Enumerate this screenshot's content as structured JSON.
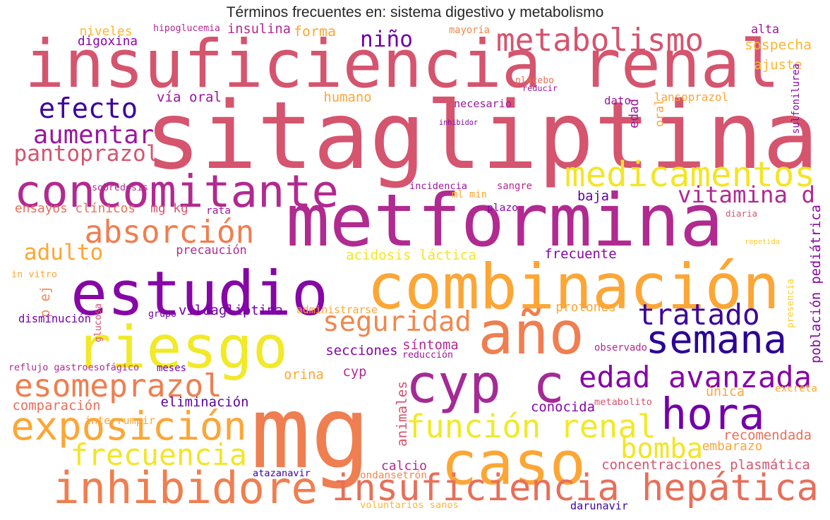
{
  "title": "Términos frecuentes en: sistema digestivo y metabolismo",
  "words": [
    {
      "text": "sitagliptina",
      "color": "#d5546e"
    },
    {
      "text": "insuficiencia renal",
      "color": "#d5546e"
    },
    {
      "text": "metformina",
      "color": "#b12a90"
    },
    {
      "text": "mg",
      "color": "#ef7e50"
    },
    {
      "text": "estudio",
      "color": "#8606a6"
    },
    {
      "text": "combinación",
      "color": "#fca636"
    },
    {
      "text": "riesgo",
      "color": "#f1e929"
    },
    {
      "text": "año",
      "color": "#ef7e50"
    },
    {
      "text": "caso",
      "color": "#fca636"
    },
    {
      "text": "cyp c",
      "color": "#a42a95"
    },
    {
      "text": "concomitante",
      "color": "#b12a90"
    },
    {
      "text": "semana",
      "color": "#2c0594"
    },
    {
      "text": "hora",
      "color": "#7201a8"
    },
    {
      "text": "inhibidore",
      "color": "#ef7e50"
    },
    {
      "text": "insuficiencia hepática",
      "color": "#e76f5a"
    },
    {
      "text": "metabolismo",
      "color": "#d5546e"
    },
    {
      "text": "medicamentos",
      "color": "#f3e525"
    },
    {
      "text": "exposición",
      "color": "#fca636"
    },
    {
      "text": "función renal",
      "color": "#f1e929"
    },
    {
      "text": "edad avanzada",
      "color": "#8606a6"
    },
    {
      "text": "esomeprazol",
      "color": "#ef7e50"
    },
    {
      "text": "frecuencia",
      "color": "#f3e525"
    },
    {
      "text": "absorción",
      "color": "#ef7e50"
    },
    {
      "text": "tratado",
      "color": "#3c049b"
    },
    {
      "text": "seguridad",
      "color": "#f0884c"
    },
    {
      "text": "efecto",
      "color": "#3c049b"
    },
    {
      "text": "aumentar",
      "color": "#9a179b"
    },
    {
      "text": "pantoprazol",
      "color": "#d5546e"
    },
    {
      "text": "vitamina d",
      "color": "#b12a90"
    },
    {
      "text": "bomba",
      "color": "#f3e525"
    },
    {
      "text": "adulto",
      "color": "#fca636"
    },
    {
      "text": "niño",
      "color": "#7201a8"
    },
    {
      "text": "niveles",
      "color": "#fcb632"
    },
    {
      "text": "hipoglucemia",
      "color": "#b12a90"
    },
    {
      "text": "insulina",
      "color": "#b12a90"
    },
    {
      "text": "forma",
      "color": "#fca636"
    },
    {
      "text": "mayoría",
      "color": "#f0884c"
    },
    {
      "text": "alta",
      "color": "#9a179b"
    },
    {
      "text": "digoxina",
      "color": "#8606a6"
    },
    {
      "text": "sospecha",
      "color": "#fcb632"
    },
    {
      "text": "ajuste",
      "color": "#fcb632"
    },
    {
      "text": "placebo",
      "color": "#e76f5a"
    },
    {
      "text": "reducir",
      "color": "#9a179b"
    },
    {
      "text": "vía oral",
      "color": "#9a179b"
    },
    {
      "text": "humano",
      "color": "#fca636"
    },
    {
      "text": "dato",
      "color": "#9a179b"
    },
    {
      "text": "lansoprazol",
      "color": "#fca636"
    },
    {
      "text": "edad",
      "color": "#9a179b"
    },
    {
      "text": "oral",
      "color": "#fca636"
    },
    {
      "text": "sulfonilurea",
      "color": "#8606a6"
    },
    {
      "text": "necesario",
      "color": "#9a179b"
    },
    {
      "text": "inhibidor",
      "color": "#8606a6"
    },
    {
      "text": "sobredosis",
      "color": "#b12a90"
    },
    {
      "text": "sangre",
      "color": "#b12a90"
    },
    {
      "text": "incidencia",
      "color": "#9a179b"
    },
    {
      "text": "ml min",
      "color": "#fca636"
    },
    {
      "text": "plazo",
      "color": "#8606a6"
    },
    {
      "text": "baja",
      "color": "#5c01a6"
    },
    {
      "text": "ensayos clínicos",
      "color": "#e76f5a"
    },
    {
      "text": "mg kg",
      "color": "#d5546e"
    },
    {
      "text": "rata",
      "color": "#9a179b"
    },
    {
      "text": "población pediátrica",
      "color": "#8606a6"
    },
    {
      "text": "diaria",
      "color": "#d5546e"
    },
    {
      "text": "precaución",
      "color": "#b12a90"
    },
    {
      "text": "acidosis láctica",
      "color": "#f3e525"
    },
    {
      "text": "frecuente",
      "color": "#8606a6"
    },
    {
      "text": "repetida",
      "color": "#fcce25"
    },
    {
      "text": "in vitro",
      "color": "#fca636"
    },
    {
      "text": "p ej",
      "color": "#f0884c"
    },
    {
      "text": "protones",
      "color": "#fca636"
    },
    {
      "text": "glucosa",
      "color": "#d5546e"
    },
    {
      "text": "vildagliptina",
      "color": "#7201a8"
    },
    {
      "text": "grupo",
      "color": "#7201a8"
    },
    {
      "text": "administrarse",
      "color": "#fca636"
    },
    {
      "text": "presencia",
      "color": "#fcce25"
    },
    {
      "text": "disminución",
      "color": "#7201a8"
    },
    {
      "text": "secciones",
      "color": "#8606a6"
    },
    {
      "text": "síntoma",
      "color": "#b12a90"
    },
    {
      "text": "reducción",
      "color": "#9a179b"
    },
    {
      "text": "observado",
      "color": "#b12a90"
    },
    {
      "text": "reflujo gastroesofágico",
      "color": "#b12a90"
    },
    {
      "text": "meses",
      "color": "#7201a8"
    },
    {
      "text": "cyp",
      "color": "#b12a90"
    },
    {
      "text": "orina",
      "color": "#fca636"
    },
    {
      "text": "animales",
      "color": "#d5546e"
    },
    {
      "text": "única",
      "color": "#fca636"
    },
    {
      "text": "excreta",
      "color": "#fca636"
    },
    {
      "text": "comparación",
      "color": "#e76f5a"
    },
    {
      "text": "eliminación",
      "color": "#5c01a6"
    },
    {
      "text": "conocida",
      "color": "#8606a6"
    },
    {
      "text": "metabolito",
      "color": "#d5546e"
    },
    {
      "text": "interrumpir",
      "color": "#fca636"
    },
    {
      "text": "recomendada",
      "color": "#e76f5a"
    },
    {
      "text": "embarazo",
      "color": "#fca636"
    },
    {
      "text": "calcio",
      "color": "#b12a90"
    },
    {
      "text": "concentraciones plasmática",
      "color": "#d5546e"
    },
    {
      "text": "atazanavir",
      "color": "#3c049b"
    },
    {
      "text": "ondansetrón",
      "color": "#f0884c"
    },
    {
      "text": "voluntarios sanos",
      "color": "#fcb632"
    },
    {
      "text": "darunavir",
      "color": "#3c049b"
    }
  ]
}
